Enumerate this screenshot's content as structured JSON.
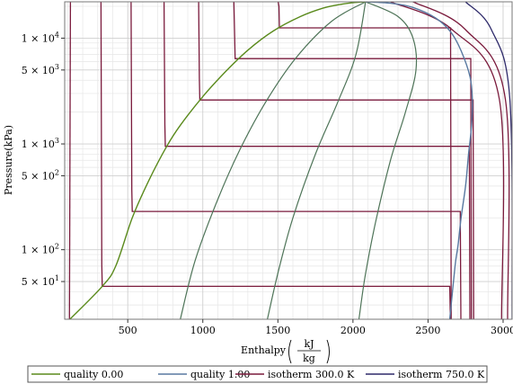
{
  "chart_data": {
    "type": "line",
    "xlabel": {
      "prefix": "Enthalpy",
      "unit_num": "kJ",
      "unit_den": "kg"
    },
    "ylabel": {
      "prefix": "Pressure",
      "unit": "kPa"
    },
    "xlim": [
      80,
      3060
    ],
    "ylim": [
      22,
      22064
    ],
    "y_scale": "log",
    "grid": true,
    "legend_position": "bottom",
    "x_ticks": [
      500,
      1000,
      1500,
      2000,
      2500,
      3000
    ],
    "x_tick_labels": [
      "500",
      "1000",
      "1500",
      "2000",
      "2500",
      "3000"
    ],
    "y_ticks": [
      {
        "value": 50,
        "mantissa": "5",
        "exponent": "1"
      },
      {
        "value": 100,
        "mantissa": "1",
        "exponent": "2"
      },
      {
        "value": 500,
        "mantissa": "5",
        "exponent": "2"
      },
      {
        "value": 1000,
        "mantissa": "1",
        "exponent": "3"
      },
      {
        "value": 5000,
        "mantissa": "5",
        "exponent": "3"
      },
      {
        "value": 10000,
        "mantissa": "1",
        "exponent": "4"
      }
    ],
    "colors": {
      "quality_0": "#5a8a1c",
      "quality_1": "#5878a0",
      "isotherm_low": "#7a1a3c",
      "isotherm_high": "#2e2a6a",
      "mid_quality": "#4e7458"
    },
    "legend": [
      {
        "label": "quality 0.00",
        "color": "#5a8a1c"
      },
      {
        "label": "quality 1.00",
        "color": "#5878a0"
      },
      {
        "label": "isotherm 300.0 K",
        "color": "#7a1a3c"
      },
      {
        "label": "isotherm 750.0 K",
        "color": "#2e2a6a"
      }
    ],
    "dome": {
      "liquid": [
        [
          115,
          22
        ],
        [
          330,
          45
        ],
        [
          420,
          70
        ],
        [
          530,
          200
        ],
        [
          640,
          450
        ],
        [
          760,
          950
        ],
        [
          850,
          1500
        ],
        [
          1000,
          2800
        ],
        [
          1150,
          4800
        ],
        [
          1300,
          7700
        ],
        [
          1470,
          11700
        ],
        [
          1650,
          16000
        ],
        [
          1800,
          19200
        ],
        [
          1920,
          20900
        ],
        [
          2010,
          21700
        ],
        [
          2084,
          22064
        ]
      ],
      "vapor": [
        [
          2084,
          22064
        ],
        [
          2250,
          21400
        ],
        [
          2400,
          19500
        ],
        [
          2550,
          15500
        ],
        [
          2650,
          11500
        ],
        [
          2720,
          7600
        ],
        [
          2780,
          4300
        ],
        [
          2795,
          2600
        ],
        [
          2790,
          1500
        ],
        [
          2770,
          800
        ],
        [
          2750,
          400
        ],
        [
          2720,
          200
        ],
        [
          2700,
          110
        ],
        [
          2680,
          70
        ],
        [
          2645,
          22
        ]
      ]
    },
    "quality_lines": [
      {
        "x_points": [
          [
            850,
            22
          ],
          [
            950,
            80
          ],
          [
            1100,
            300
          ],
          [
            1250,
            900
          ],
          [
            1420,
            2500
          ],
          [
            1620,
            6500
          ],
          [
            1860,
            14500
          ],
          [
            2084,
            22064
          ]
        ]
      },
      {
        "x_points": [
          [
            1430,
            22
          ],
          [
            1500,
            60
          ],
          [
            1600,
            200
          ],
          [
            1750,
            800
          ],
          [
            1900,
            2500
          ],
          [
            2020,
            7000
          ],
          [
            2084,
            22064
          ]
        ]
      },
      {
        "x_points": [
          [
            2040,
            22
          ],
          [
            2080,
            55
          ],
          [
            2150,
            180
          ],
          [
            2250,
            700
          ],
          [
            2350,
            2000
          ],
          [
            2420,
            5000
          ],
          [
            2400,
            10000
          ],
          [
            2300,
            16000
          ],
          [
            2084,
            22064
          ]
        ]
      }
    ],
    "isotherms": [
      {
        "h_liq": 112,
        "h_vap": 112,
        "p_sat": 0
      },
      {
        "h_liq": 330,
        "h_vap": 2645,
        "p_sat": 45
      },
      {
        "h_liq": 530,
        "h_vap": 2715,
        "p_sat": 230
      },
      {
        "h_liq": 750,
        "h_vap": 2775,
        "p_sat": 950
      },
      {
        "h_liq": 980,
        "h_vap": 2800,
        "p_sat": 2600
      },
      {
        "h_liq": 1215,
        "h_vap": 2785,
        "p_sat": 6400
      },
      {
        "h_liq": 1510,
        "h_vap": 2650,
        "p_sat": 12500
      }
    ],
    "supercritical": [
      {
        "h_start": 2250,
        "h_end": 2990,
        "p_top": 22064
      },
      {
        "h_start": 2400,
        "h_end": 3030,
        "p_top": 22064
      },
      {
        "h_start": 2750,
        "h_end": 3060,
        "p_top": 22064
      }
    ]
  }
}
